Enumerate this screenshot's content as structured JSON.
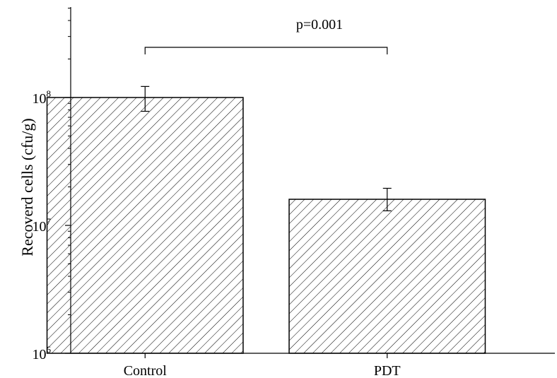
{
  "chart_data": {
    "type": "bar",
    "title": "",
    "xlabel": "",
    "ylabel": "Recoverd cells (cfu/g)",
    "yscale": "log",
    "ylim": [
      1000000,
      1000000000
    ],
    "categories": [
      "Control",
      "PDT"
    ],
    "values": [
      100000000,
      16000000
    ],
    "error_high": [
      122000000,
      19500000
    ],
    "error_low": [
      78000000,
      13000000
    ],
    "y_ticks": [
      {
        "value": 1000000,
        "base": "10",
        "exp": "6"
      },
      {
        "value": 10000000,
        "base": "10",
        "exp": "7"
      },
      {
        "value": 100000000,
        "base": "10",
        "exp": "8"
      }
    ],
    "annotation": {
      "text": "p=0.001",
      "from": "Control",
      "to": "PDT"
    },
    "bar_fill": "hatched",
    "bar_stroke": "#000000",
    "grid": false,
    "legend": "none"
  }
}
